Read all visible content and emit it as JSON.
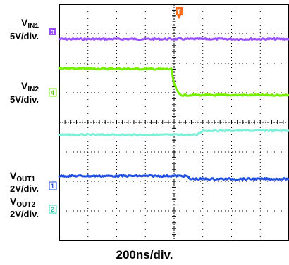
{
  "chart_data": {
    "type": "line",
    "title": "",
    "xlabel": "200ns/div.",
    "x_unit_per_div": "200ns",
    "divisions": {
      "x": 8,
      "y": 8
    },
    "grid": true,
    "trigger_marker": "T",
    "x_range_div": [
      -4,
      4
    ],
    "series": [
      {
        "name": "VIN1",
        "scale": "5V/div.",
        "channel": "3",
        "color": "#9b4dff",
        "x": [
          -4,
          -0.2,
          0.2,
          4
        ],
        "y": [
          2.82,
          2.82,
          2.82,
          2.82
        ]
      },
      {
        "name": "VIN2",
        "scale": "5V/div.",
        "channel": "4",
        "color": "#77ee00",
        "x": [
          -4,
          -0.1,
          0.0,
          0.15,
          0.25,
          4
        ],
        "y": [
          1.82,
          1.8,
          1.3,
          0.98,
          0.92,
          0.92
        ]
      },
      {
        "name": "",
        "scale": "",
        "channel": "",
        "color": "#7ff0d8",
        "x": [
          -4,
          0.8,
          1.0,
          4
        ],
        "y": [
          -0.42,
          -0.42,
          -0.28,
          -0.28
        ]
      },
      {
        "name": "VOUT1",
        "scale": "2V/div.",
        "channel": "1",
        "color": "#1f4fe0",
        "x": [
          -4,
          0.45,
          0.55,
          4
        ],
        "y": [
          -1.82,
          -1.82,
          -1.92,
          -1.92
        ]
      }
    ]
  },
  "labels": {
    "vin1_main": "V",
    "vin1_sub": "IN1",
    "vin1_scale": "5V/div.",
    "vin1_ch": "3",
    "vin2_main": "V",
    "vin2_sub": "IN2",
    "vin2_scale": "5V/div.",
    "vin2_ch": "4",
    "vout1_main": "V",
    "vout1_sub": "OUT1",
    "vout1_scale": "2V/div.",
    "vout1_ch": "1",
    "vout2_main": "V",
    "vout2_sub": "OUT2",
    "vout2_scale": "2V/div.",
    "vout2_ch": "2",
    "time_scale": "200ns/div.",
    "trigger": "T"
  },
  "colors": {
    "vin1": "#9b4dff",
    "vin2": "#77ee00",
    "mid": "#7ff0d8",
    "vout1": "#1f4fe0",
    "ch2": "#3fd8c0",
    "trigger": "#ff6a1a",
    "grid": "#000000"
  }
}
